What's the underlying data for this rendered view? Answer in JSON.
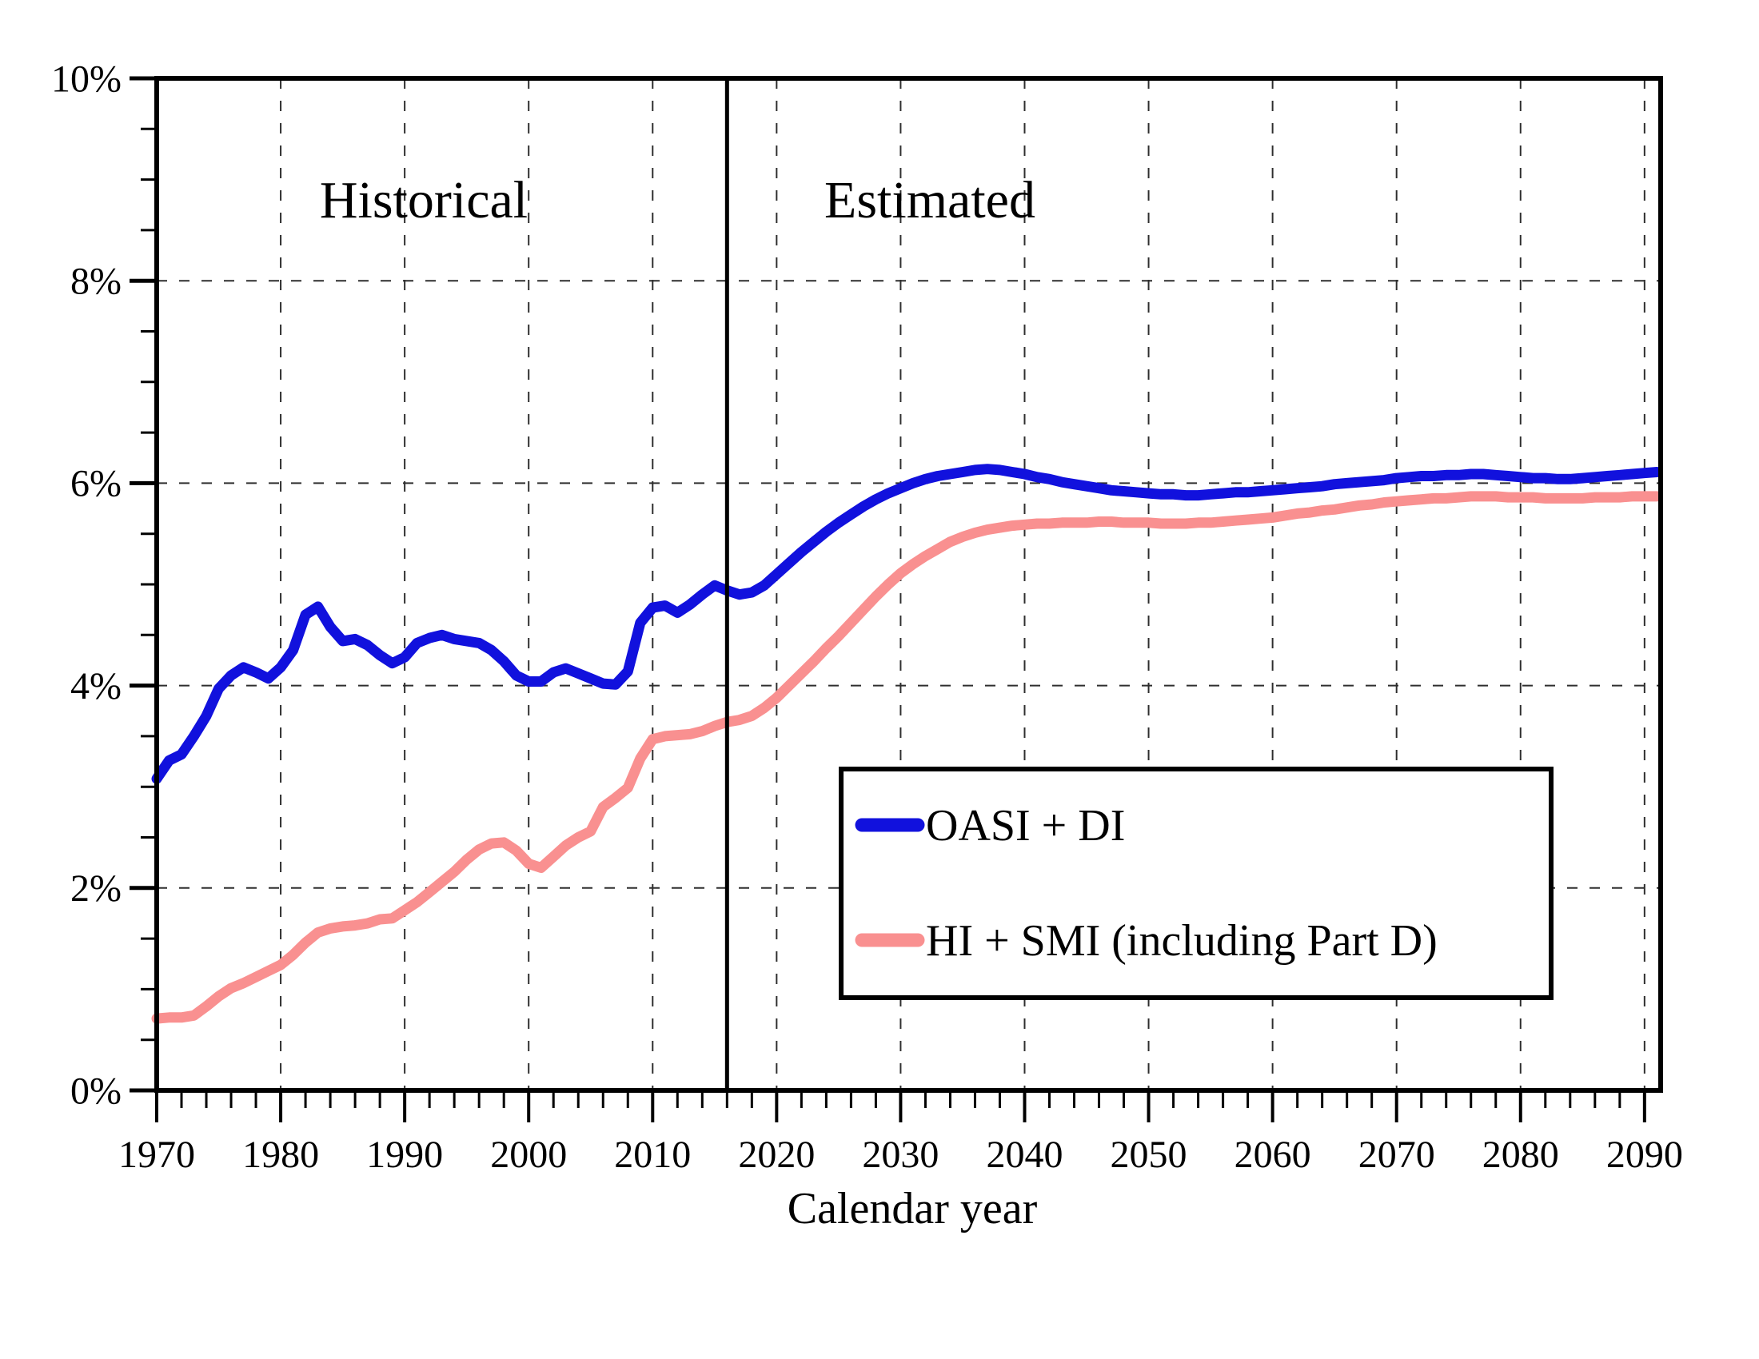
{
  "chart_data": {
    "type": "line",
    "title": "",
    "xlabel": "Calendar year",
    "ylabel": "",
    "xlim": [
      1970,
      2091.3
    ],
    "ylim": [
      0,
      10
    ],
    "grid": {
      "vertical_every_years": 10,
      "horizontal_every_pct": 2,
      "style": "dashed"
    },
    "x_minor_tick_step_years": 2,
    "y_minor_tick_step_pct": 0.5,
    "x_ticks": [
      {
        "year": 1970,
        "label": "1970"
      },
      {
        "year": 1980,
        "label": "1980"
      },
      {
        "year": 1990,
        "label": "1990"
      },
      {
        "year": 2000,
        "label": "2000"
      },
      {
        "year": 2010,
        "label": "2010"
      },
      {
        "year": 2020,
        "label": "2020"
      },
      {
        "year": 2030,
        "label": "2030"
      },
      {
        "year": 2040,
        "label": "2040"
      },
      {
        "year": 2050,
        "label": "2050"
      },
      {
        "year": 2060,
        "label": "2060"
      },
      {
        "year": 2070,
        "label": "2070"
      },
      {
        "year": 2080,
        "label": "2080"
      },
      {
        "year": 2090,
        "label": "2090"
      }
    ],
    "y_ticks": [
      {
        "pct": 0,
        "label": "0%"
      },
      {
        "pct": 2,
        "label": "2%"
      },
      {
        "pct": 4,
        "label": "4%"
      },
      {
        "pct": 6,
        "label": "6%"
      },
      {
        "pct": 8,
        "label": "8%"
      },
      {
        "pct": 10,
        "label": "10%"
      }
    ],
    "annotations": {
      "divider_year": 2016,
      "left_region_label": "Historical",
      "right_region_label": "Estimated"
    },
    "legend": {
      "position": "inside-lower-right",
      "border_color": "#000000",
      "background": "#ffffff"
    },
    "x": [
      1970,
      1971,
      1972,
      1973,
      1974,
      1975,
      1976,
      1977,
      1978,
      1979,
      1980,
      1981,
      1982,
      1983,
      1984,
      1985,
      1986,
      1987,
      1988,
      1989,
      1990,
      1991,
      1992,
      1993,
      1994,
      1995,
      1996,
      1997,
      1998,
      1999,
      2000,
      2001,
      2002,
      2003,
      2004,
      2005,
      2006,
      2007,
      2008,
      2009,
      2010,
      2011,
      2012,
      2013,
      2014,
      2015,
      2016,
      2017,
      2018,
      2019,
      2020,
      2021,
      2022,
      2023,
      2024,
      2025,
      2026,
      2027,
      2028,
      2029,
      2030,
      2031,
      2032,
      2033,
      2034,
      2035,
      2036,
      2037,
      2038,
      2039,
      2040,
      2041,
      2042,
      2043,
      2044,
      2045,
      2046,
      2047,
      2048,
      2049,
      2050,
      2051,
      2052,
      2053,
      2054,
      2055,
      2056,
      2057,
      2058,
      2059,
      2060,
      2061,
      2062,
      2063,
      2064,
      2065,
      2066,
      2067,
      2068,
      2069,
      2070,
      2071,
      2072,
      2073,
      2074,
      2075,
      2076,
      2077,
      2078,
      2079,
      2080,
      2081,
      2082,
      2083,
      2084,
      2085,
      2086,
      2087,
      2088,
      2089,
      2090,
      2091
    ],
    "series": [
      {
        "name": "OASI + DI",
        "color": "#1111dd",
        "values": [
          3.08,
          3.26,
          3.32,
          3.5,
          3.7,
          3.97,
          4.1,
          4.18,
          4.13,
          4.07,
          4.18,
          4.35,
          4.7,
          4.78,
          4.58,
          4.44,
          4.46,
          4.4,
          4.3,
          4.22,
          4.28,
          4.42,
          4.47,
          4.5,
          4.46,
          4.44,
          4.42,
          4.35,
          4.24,
          4.1,
          4.04,
          4.04,
          4.13,
          4.17,
          4.12,
          4.07,
          4.02,
          4.01,
          4.14,
          4.62,
          4.77,
          4.79,
          4.72,
          4.8,
          4.9,
          4.99,
          4.94,
          4.9,
          4.92,
          4.99,
          5.1,
          5.21,
          5.32,
          5.42,
          5.52,
          5.61,
          5.69,
          5.77,
          5.84,
          5.9,
          5.95,
          6.0,
          6.04,
          6.07,
          6.09,
          6.11,
          6.13,
          6.14,
          6.13,
          6.11,
          6.09,
          6.06,
          6.04,
          6.01,
          5.99,
          5.97,
          5.95,
          5.93,
          5.92,
          5.91,
          5.9,
          5.89,
          5.89,
          5.88,
          5.88,
          5.89,
          5.9,
          5.91,
          5.91,
          5.92,
          5.93,
          5.94,
          5.95,
          5.96,
          5.97,
          5.99,
          6.0,
          6.01,
          6.02,
          6.03,
          6.05,
          6.06,
          6.07,
          6.07,
          6.08,
          6.08,
          6.09,
          6.09,
          6.08,
          6.07,
          6.06,
          6.05,
          6.05,
          6.04,
          6.04,
          6.05,
          6.06,
          6.07,
          6.08,
          6.09,
          6.1,
          6.11
        ]
      },
      {
        "name": "HI + SMI (including Part D)",
        "color": "#f99090",
        "values": [
          0.71,
          0.72,
          0.72,
          0.74,
          0.83,
          0.93,
          1.01,
          1.06,
          1.12,
          1.18,
          1.24,
          1.34,
          1.46,
          1.56,
          1.6,
          1.62,
          1.63,
          1.65,
          1.69,
          1.7,
          1.78,
          1.86,
          1.96,
          2.06,
          2.16,
          2.28,
          2.38,
          2.44,
          2.45,
          2.37,
          2.24,
          2.2,
          2.31,
          2.42,
          2.5,
          2.56,
          2.8,
          2.89,
          2.99,
          3.28,
          3.47,
          3.5,
          3.51,
          3.52,
          3.55,
          3.6,
          3.64,
          3.66,
          3.7,
          3.78,
          3.88,
          4.0,
          4.12,
          4.24,
          4.37,
          4.49,
          4.62,
          4.75,
          4.88,
          5.0,
          5.11,
          5.2,
          5.28,
          5.35,
          5.42,
          5.47,
          5.51,
          5.54,
          5.56,
          5.58,
          5.59,
          5.6,
          5.6,
          5.61,
          5.61,
          5.61,
          5.62,
          5.62,
          5.61,
          5.61,
          5.61,
          5.6,
          5.6,
          5.6,
          5.61,
          5.61,
          5.62,
          5.63,
          5.64,
          5.65,
          5.66,
          5.68,
          5.7,
          5.71,
          5.73,
          5.74,
          5.76,
          5.78,
          5.79,
          5.81,
          5.82,
          5.83,
          5.84,
          5.85,
          5.85,
          5.86,
          5.87,
          5.87,
          5.87,
          5.86,
          5.86,
          5.86,
          5.85,
          5.85,
          5.85,
          5.85,
          5.86,
          5.86,
          5.86,
          5.87,
          5.87,
          5.87
        ]
      }
    ]
  }
}
